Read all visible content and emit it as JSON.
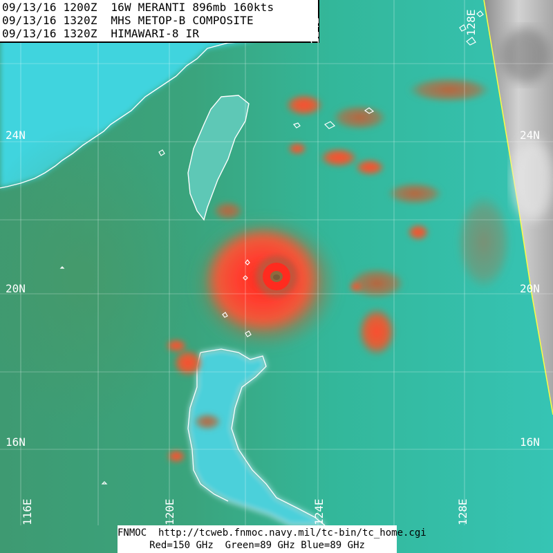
{
  "header": {
    "line1": "09/13/16 1200Z  16W MERANTI 896mb 160kts",
    "line2": "09/13/16 1320Z  MHS METOP-B COMPOSITE",
    "line3": "09/13/16 1320Z  HIMAWARI-8 IR"
  },
  "footer": {
    "line1": "FNMOC  http://tcweb.fnmoc.navy.mil/tc-bin/tc_home.cgi",
    "line2": "Red=150 GHz  Green=89 GHz Blue=89 GHz"
  },
  "map": {
    "lat_labels": [
      "24N",
      "20N",
      "16N"
    ],
    "lat_labels_right": [
      "24N",
      "20N",
      "16N"
    ],
    "lon_labels": [
      "124E",
      "128E"
    ],
    "lon_labels_bottom": [
      "116E",
      "120E",
      "124E",
      "128E"
    ],
    "storm_name": "MERANTI",
    "colors": {
      "ocean": "#2fbfa6",
      "green_west": "#3d9a6f",
      "land": "#48d6e0",
      "convection": "#ff3b2f",
      "moderate": "#c8663a",
      "ir_clouds": "#9a9a9a",
      "coastline": "#ffffff",
      "swath_edge": "#ffff40"
    }
  }
}
